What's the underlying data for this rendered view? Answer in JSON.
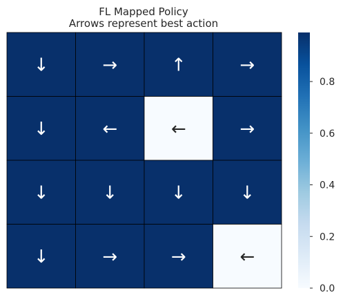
{
  "chart_data": {
    "type": "heatmap",
    "title": "FL Mapped Policy",
    "subtitle": "Arrows represent best action",
    "rows": 4,
    "cols": 4,
    "values": [
      [
        1,
        1,
        1,
        1
      ],
      [
        1,
        1,
        0,
        1
      ],
      [
        1,
        1,
        1,
        1
      ],
      [
        1,
        1,
        1,
        0
      ]
    ],
    "annotations": [
      [
        "↓",
        "→",
        "↑",
        "→"
      ],
      [
        "↓",
        "←",
        "←",
        "→"
      ],
      [
        "↓",
        "↓",
        "↓",
        "↓"
      ],
      [
        "↓",
        "→",
        "→",
        "←"
      ]
    ],
    "colorbar": {
      "ticks": [
        0.0,
        0.2,
        0.4,
        0.6,
        0.8
      ],
      "tick_labels": [
        "0.0",
        "0.2",
        "0.4",
        "0.6",
        "0.8"
      ],
      "range": [
        0,
        1
      ]
    },
    "colors": {
      "high": "#08306b",
      "low": "#f7fbff",
      "text_on_high": "#ffffff",
      "text_on_low": "#262626",
      "cell_border": "#000000"
    },
    "colormap": "Blues",
    "grid": false
  }
}
